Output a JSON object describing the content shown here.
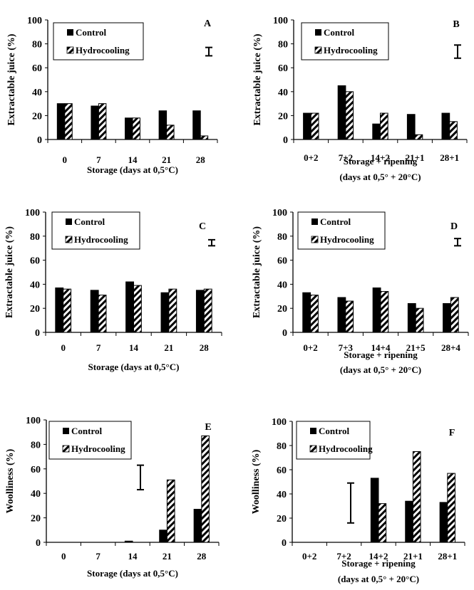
{
  "legend": {
    "control": "Control",
    "hydrocooling": "Hydrocooling"
  },
  "chart_data": [
    {
      "panel": "A",
      "type": "bar",
      "ylabel": "Extractable juice (%)",
      "xlabel": [
        "Storage (days at 0,5°C)"
      ],
      "categories": [
        "0",
        "7",
        "14",
        "21",
        "28"
      ],
      "ylim": [
        0,
        100
      ],
      "yticks": [
        "0",
        "20",
        "40",
        "60",
        "80",
        "100"
      ],
      "series": [
        {
          "name": "Control",
          "values": [
            30,
            28,
            18,
            24,
            24
          ]
        },
        {
          "name": "Hydrocooling",
          "values": [
            30,
            30,
            18,
            12,
            3
          ]
        }
      ],
      "error_bar": {
        "low": 70,
        "high": 77
      },
      "legend_position": "top-left"
    },
    {
      "panel": "B",
      "type": "bar",
      "ylabel": "Extractable juice (%)",
      "xlabel": [
        "Storage + ripening",
        "(days at 0,5° + 20°C)"
      ],
      "categories": [
        "0+2",
        "7+2",
        "14+2",
        "21+1",
        "28+1"
      ],
      "ylim": [
        0,
        100
      ],
      "yticks": [
        "0",
        "20",
        "40",
        "60",
        "80",
        "100"
      ],
      "series": [
        {
          "name": "Control",
          "values": [
            22,
            45,
            13,
            21,
            22
          ]
        },
        {
          "name": "Hydrocooling",
          "values": [
            22,
            40,
            22,
            4,
            15
          ]
        }
      ],
      "error_bar": {
        "low": 68,
        "high": 79
      },
      "legend_position": "top-left"
    },
    {
      "panel": "C",
      "type": "bar",
      "ylabel": "Extractable juice (%)",
      "xlabel": [
        "Storage (days at 0,5°C)"
      ],
      "categories": [
        "0",
        "7",
        "14",
        "21",
        "28"
      ],
      "ylim": [
        0,
        100
      ],
      "yticks": [
        "0",
        "20",
        "40",
        "60",
        "80",
        "100"
      ],
      "series": [
        {
          "name": "Control",
          "values": [
            37,
            35,
            42,
            33,
            35
          ]
        },
        {
          "name": "Hydrocooling",
          "values": [
            36,
            31,
            39,
            36,
            36
          ]
        }
      ],
      "error_bar": {
        "low": 72,
        "high": 77
      },
      "legend_position": "top-left"
    },
    {
      "panel": "D",
      "type": "bar",
      "ylabel": "Extractable juice (%)",
      "xlabel": [
        "Storage + ripening",
        "(days at 0,5° + 20°C)"
      ],
      "categories": [
        "0+2",
        "7+3",
        "14+4",
        "21+5",
        "28+4"
      ],
      "ylim": [
        0,
        100
      ],
      "yticks": [
        "0",
        "20",
        "40",
        "60",
        "80",
        "100"
      ],
      "series": [
        {
          "name": "Control",
          "values": [
            33,
            29,
            37,
            24,
            24
          ]
        },
        {
          "name": "Hydrocooling",
          "values": [
            31,
            26,
            34,
            20,
            29
          ]
        }
      ],
      "error_bar": {
        "low": 72,
        "high": 78
      },
      "legend_position": "top-left"
    },
    {
      "panel": "E",
      "type": "bar",
      "ylabel": "Woolliness (%)",
      "xlabel": [
        "Storage (days at 0,5°C)"
      ],
      "categories": [
        "0",
        "7",
        "14",
        "21",
        "28"
      ],
      "ylim": [
        0,
        100
      ],
      "yticks": [
        "0",
        "20",
        "40",
        "60",
        "80",
        "100"
      ],
      "series": [
        {
          "name": "Control",
          "values": [
            0,
            0,
            1,
            10,
            27
          ]
        },
        {
          "name": "Hydrocooling",
          "values": [
            0,
            0,
            0,
            51,
            87
          ]
        }
      ],
      "error_bar": {
        "low": 43,
        "high": 63
      },
      "legend_position": "top-left"
    },
    {
      "panel": "F",
      "type": "bar",
      "ylabel": "Woolliness (%)",
      "xlabel": [
        "Storage + ripening",
        "(days at 0,5° + 20°C)"
      ],
      "categories": [
        "0+2",
        "7+2",
        "14+2",
        "21+1",
        "28+1"
      ],
      "ylim": [
        0,
        100
      ],
      "yticks": [
        "0",
        "20",
        "40",
        "60",
        "80",
        "100"
      ],
      "series": [
        {
          "name": "Control",
          "values": [
            0,
            0,
            53,
            34,
            33
          ]
        },
        {
          "name": "Hydrocooling",
          "values": [
            0,
            0,
            32,
            75,
            57
          ]
        }
      ],
      "error_bar": {
        "low": 16,
        "high": 49
      },
      "legend_position": "top-left"
    }
  ]
}
